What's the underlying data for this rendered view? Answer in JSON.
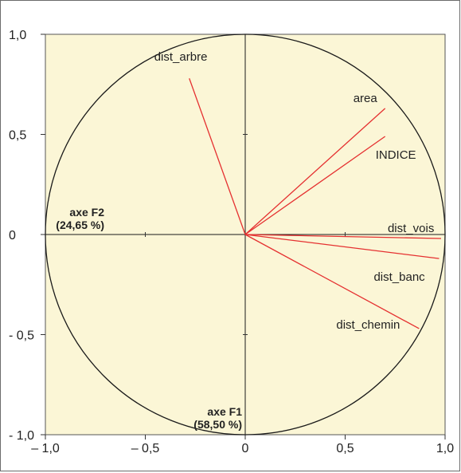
{
  "chart_data": {
    "type": "scatter",
    "subtype": "correlation-circle",
    "xlim": [
      -1.0,
      1.0
    ],
    "ylim": [
      -1.0,
      1.0
    ],
    "x_tick_labels": [
      "– 1,0",
      "– 0,5",
      "0",
      "0,5",
      "1,0"
    ],
    "y_tick_labels": [
      "1,0",
      "0,5",
      "0",
      "- 0,5",
      "- 1,0"
    ],
    "x_ticks": [
      -1.0,
      -0.5,
      0,
      0.5,
      1.0
    ],
    "y_ticks": [
      1.0,
      0.5,
      0,
      -0.5,
      -1.0
    ],
    "x_axis_name": "axe F1",
    "x_axis_pct": "(58,50 %)",
    "y_axis_name": "axe F2",
    "y_axis_pct": "(24,65 %)",
    "vectors": [
      {
        "name": "dist_arbre",
        "x": -0.28,
        "y": 0.78
      },
      {
        "name": "area",
        "x": 0.7,
        "y": 0.63
      },
      {
        "name": "INDICE",
        "x": 0.7,
        "y": 0.49
      },
      {
        "name": "dist_vois",
        "x": 0.98,
        "y": -0.02
      },
      {
        "name": "dist_banc",
        "x": 0.97,
        "y": -0.12
      },
      {
        "name": "dist_chemin",
        "x": 0.87,
        "y": -0.47
      }
    ],
    "grid": false,
    "colors": {
      "background": "#fbf6d6",
      "vector": "#e53030",
      "circle": "#1a1a1a",
      "axis": "#1a1a1a"
    }
  }
}
